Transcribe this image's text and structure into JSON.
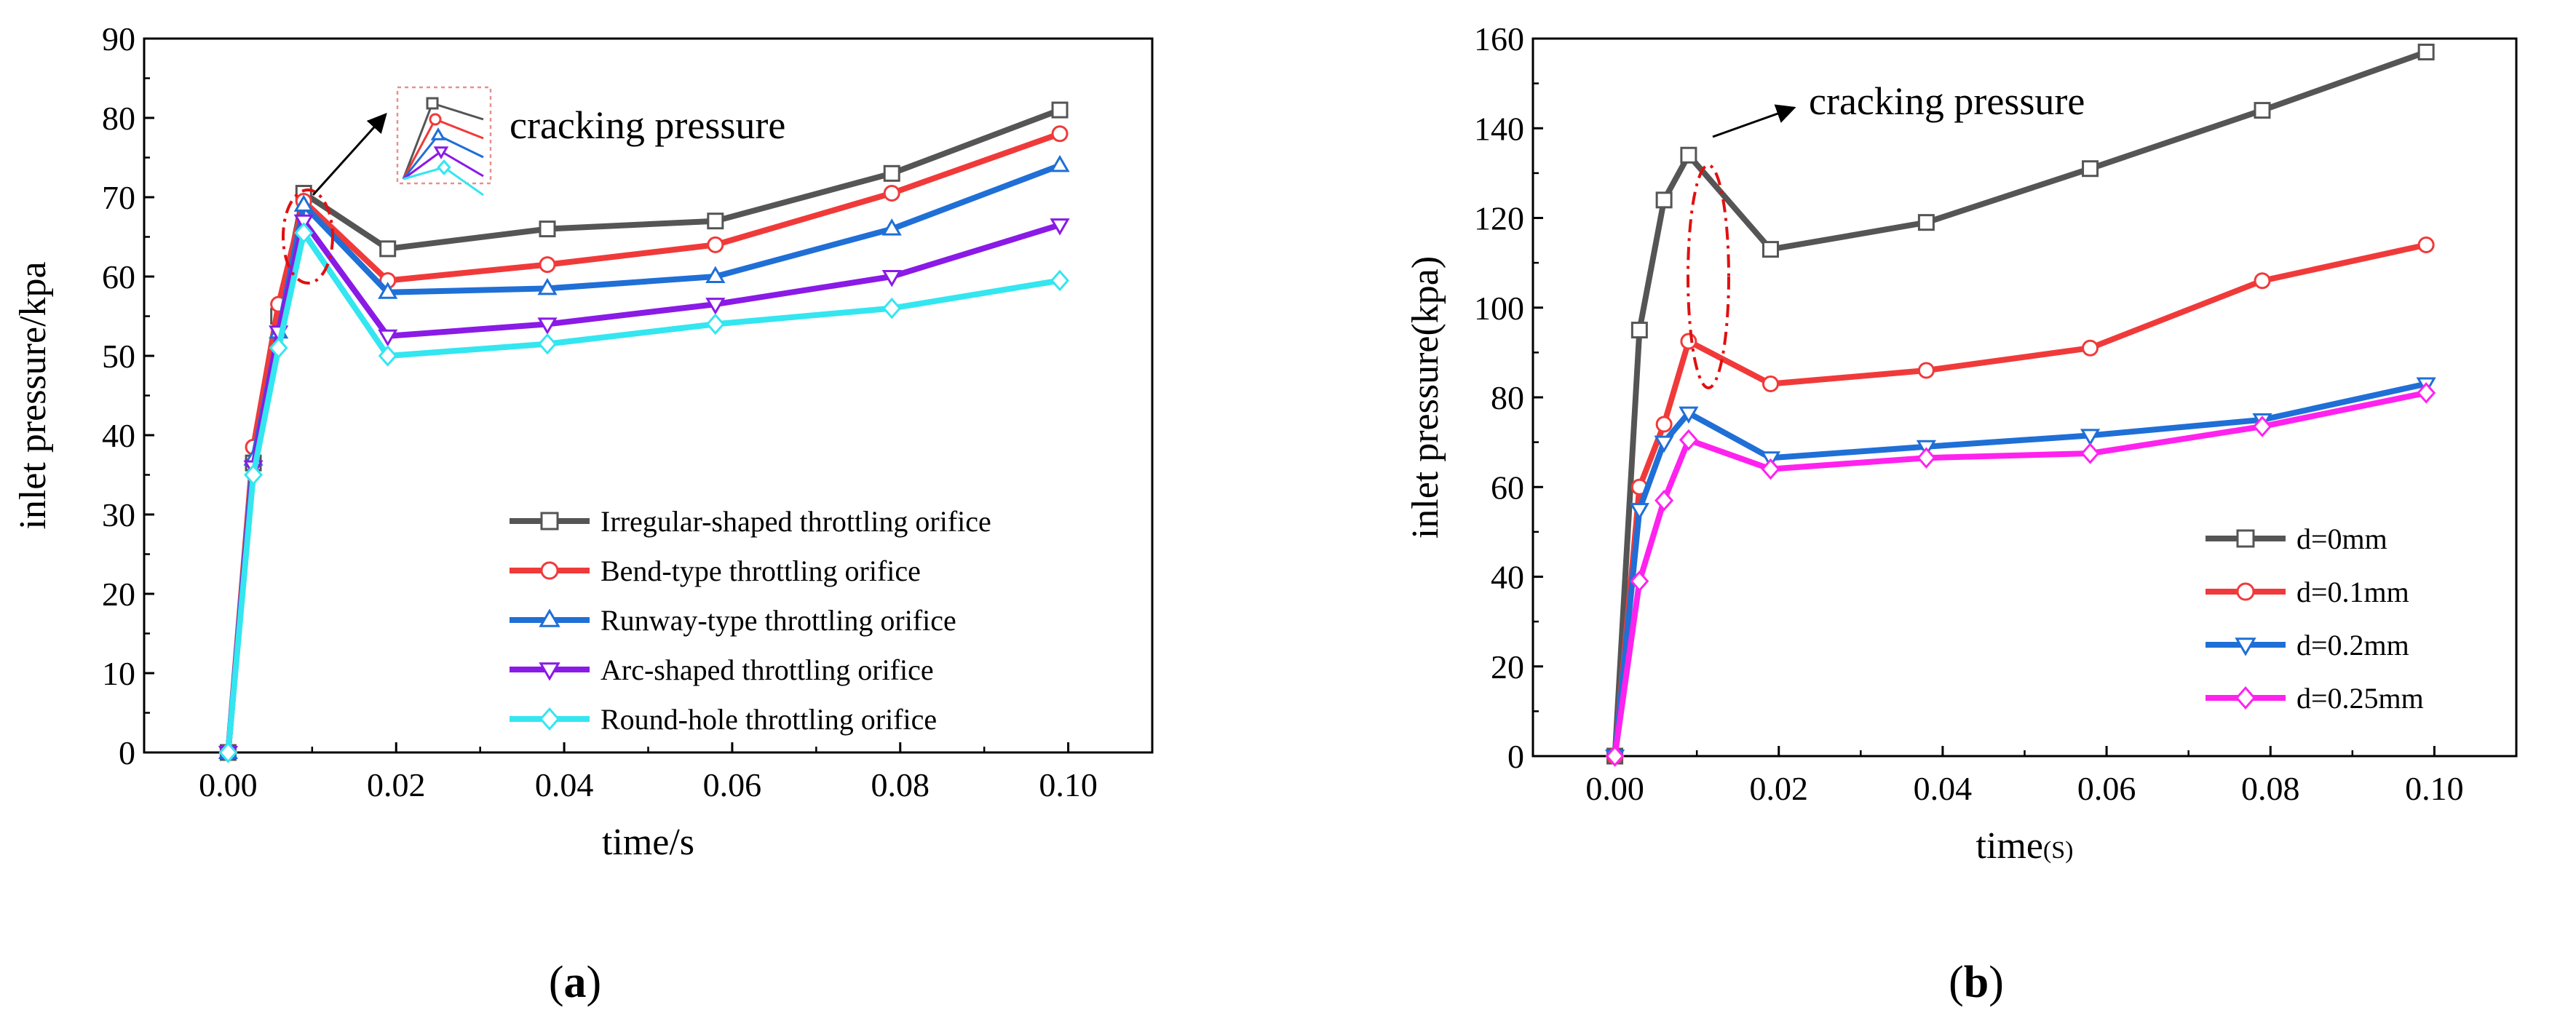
{
  "chart_data": [
    {
      "type": "line",
      "panel_label": "(a)",
      "panel_letter": "a",
      "xlabel": "time/s",
      "ylabel": "inlet pressure/kpa",
      "xlim": [
        -0.01,
        0.11
      ],
      "ylim": [
        0,
        90
      ],
      "xticks": [
        0.0,
        0.02,
        0.04,
        0.06,
        0.08,
        0.1
      ],
      "xtick_labels": [
        "0.00",
        "0.02",
        "0.04",
        "0.06",
        "0.08",
        "0.10"
      ],
      "yticks": [
        0,
        10,
        20,
        30,
        40,
        50,
        60,
        70,
        80,
        90
      ],
      "ytick_labels": [
        "0",
        "10",
        "20",
        "30",
        "40",
        "50",
        "60",
        "70",
        "80",
        "90"
      ],
      "annotation": "cracking pressure",
      "legend_position": "bottom-right",
      "x": [
        0,
        0.003,
        0.006,
        0.009,
        0.019,
        0.038,
        0.058,
        0.079,
        0.099
      ],
      "series": [
        {
          "name": "Irregular-shaped throttling orifice",
          "color": "#555555",
          "marker": "square",
          "values": [
            0,
            36.5,
            55,
            70.5,
            63.5,
            66,
            67,
            73,
            81
          ]
        },
        {
          "name": "Bend-type throttling orifice",
          "color": "#f03a3a",
          "marker": "circle",
          "values": [
            0,
            38.5,
            56.5,
            69.5,
            59.5,
            61.5,
            64,
            70.5,
            78
          ]
        },
        {
          "name": "Runway-type throttling orifice",
          "color": "#1f6fd6",
          "marker": "triangle-up",
          "values": [
            0,
            37,
            53,
            69,
            58,
            58.5,
            60,
            66,
            74
          ]
        },
        {
          "name": "Arc-shaped throttling orifice",
          "color": "#8a1ae6",
          "marker": "triangle-down",
          "values": [
            0,
            36,
            53,
            67,
            52.5,
            54,
            56.5,
            60,
            66.5
          ]
        },
        {
          "name": "Round-hole throttling orifice",
          "color": "#33e6f0",
          "marker": "diamond",
          "values": [
            0,
            35,
            51,
            65.5,
            50,
            51.5,
            54,
            56,
            59.5
          ]
        }
      ]
    },
    {
      "type": "line",
      "panel_label": "(b)",
      "panel_letter": "b",
      "xlabel": "time(S)",
      "ylabel": "inlet pressure(kpa)",
      "xlim": [
        -0.01,
        0.11
      ],
      "ylim": [
        0,
        160
      ],
      "xticks": [
        0.0,
        0.02,
        0.04,
        0.06,
        0.08,
        0.1
      ],
      "xtick_labels": [
        "0.00",
        "0.02",
        "0.04",
        "0.06",
        "0.08",
        "0.10"
      ],
      "yticks": [
        0,
        20,
        40,
        60,
        80,
        100,
        120,
        140,
        160
      ],
      "ytick_labels": [
        "0",
        "20",
        "40",
        "60",
        "80",
        "100",
        "120",
        "140",
        "160"
      ],
      "annotation": "cracking pressure",
      "legend_position": "bottom-right",
      "x": [
        0,
        0.003,
        0.006,
        0.009,
        0.019,
        0.038,
        0.058,
        0.079,
        0.099
      ],
      "series": [
        {
          "name": "d=0mm",
          "color": "#555555",
          "marker": "square",
          "values": [
            0,
            95,
            124,
            134,
            113,
            119,
            131,
            144,
            157
          ]
        },
        {
          "name": "d=0.1mm",
          "color": "#f03a3a",
          "marker": "circle",
          "values": [
            0,
            60,
            74,
            92.5,
            83,
            86,
            91,
            106,
            114
          ]
        },
        {
          "name": "d=0.2mm",
          "color": "#1f6fd6",
          "marker": "triangle-down",
          "values": [
            0,
            55,
            70,
            76.5,
            66.5,
            69,
            71.5,
            75,
            83
          ]
        },
        {
          "name": "d=0.25mm",
          "color": "#ff22ee",
          "marker": "diamond",
          "values": [
            0,
            39,
            57,
            70.5,
            64,
            66.5,
            67.5,
            73.5,
            81
          ]
        }
      ]
    }
  ]
}
